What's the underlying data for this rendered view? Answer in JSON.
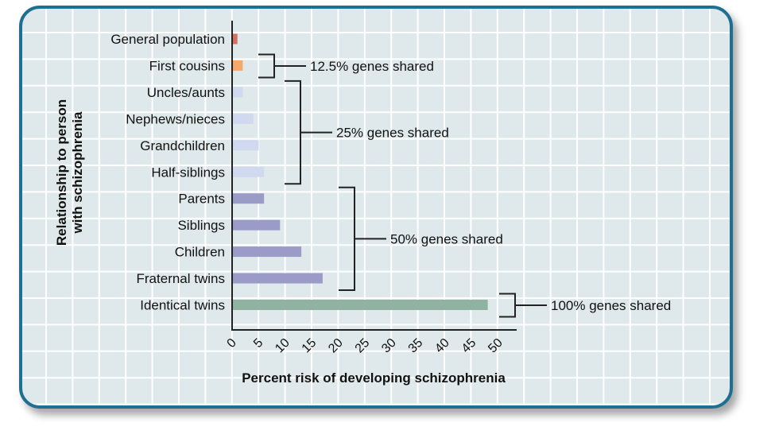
{
  "chart_data": {
    "type": "bar",
    "orientation": "horizontal",
    "xlabel": "Percent risk of developing schizophrenia",
    "ylabel_lines": [
      "Relationship to person",
      "with schizophrenia"
    ],
    "xlim": [
      0,
      50
    ],
    "xticks": [
      0,
      5,
      10,
      15,
      20,
      25,
      30,
      35,
      40,
      45,
      50
    ],
    "grid": true,
    "categories": [
      "General population",
      "First cousins",
      "Uncles/aunts",
      "Nephews/nieces",
      "Grandchildren",
      "Half-siblings",
      "Parents",
      "Siblings",
      "Children",
      "Fraternal twins",
      "Identical twins"
    ],
    "values": [
      1,
      2,
      2,
      4,
      5,
      6,
      6,
      9,
      13,
      17,
      48
    ],
    "bar_colors": [
      "#d4705e",
      "#f5a86a",
      "#d0d9ef",
      "#d0d9ef",
      "#d0d9ef",
      "#d0d9ef",
      "#9b9bc8",
      "#9b9bc8",
      "#9b9bc8",
      "#9b9bc8",
      "#8fb3a0"
    ],
    "groups": [
      {
        "label": "12.5% genes shared",
        "from": 1,
        "to": 1
      },
      {
        "label": "25% genes shared",
        "from": 2,
        "to": 5
      },
      {
        "label": "50% genes shared",
        "from": 6,
        "to": 9
      },
      {
        "label": "100% genes shared",
        "from": 10,
        "to": 10
      }
    ]
  }
}
